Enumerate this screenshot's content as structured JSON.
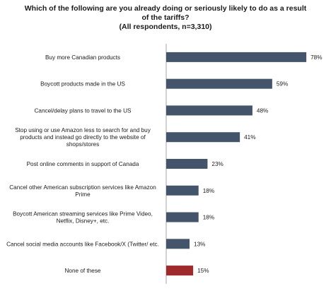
{
  "title_lines": [
    "Which of the following are you already doing or seriously likely to do as a result",
    "of the tariffs?",
    "(All respondents, n=3,310)"
  ],
  "chart_data": {
    "type": "bar",
    "orientation": "horizontal",
    "categories": [
      [
        "Buy more Canadian products"
      ],
      [
        "Boycott products made in the US"
      ],
      [
        "Cancel/delay plans to travel to the US"
      ],
      [
        "Stop using or use Amazon less to search for and buy",
        "products and instead go directly to the website of",
        "shops/stores"
      ],
      [
        "Post online comments in support of Canada"
      ],
      [
        "Cancel other American subscription services like Amazon",
        "Prime"
      ],
      [
        "Boycott American streaming services like Prime Video,",
        "Netflix, Disney+, etc."
      ],
      [
        "Cancel social media accounts like Facebook/X (Twitter/ etc."
      ],
      [
        "None of these"
      ]
    ],
    "values": [
      78,
      59,
      48,
      41,
      23,
      18,
      18,
      13,
      15
    ],
    "value_labels": [
      "78%",
      "59%",
      "48%",
      "41%",
      "23%",
      "18%",
      "18%",
      "13%",
      "15%"
    ],
    "unit": "%",
    "xlim": [
      0,
      80
    ],
    "colors": [
      "#44546a",
      "#44546a",
      "#44546a",
      "#44546a",
      "#44546a",
      "#44546a",
      "#44546a",
      "#44546a",
      "#9e2a2b"
    ],
    "grid": false,
    "legend": "none"
  }
}
